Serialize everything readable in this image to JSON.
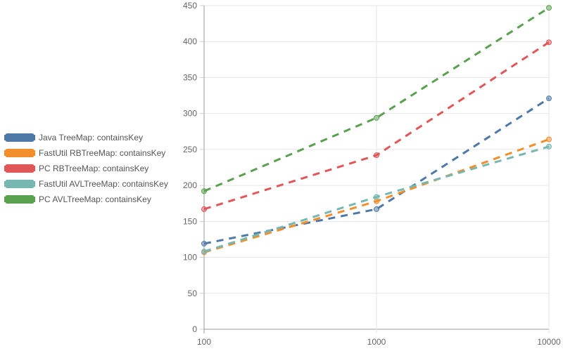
{
  "chart_data": {
    "type": "line",
    "x": [
      100,
      1000,
      10000
    ],
    "x_scale": "log",
    "xlim": [
      100,
      10000
    ],
    "ylim": [
      0,
      450
    ],
    "y_ticks": [
      0,
      50,
      100,
      150,
      200,
      250,
      300,
      350,
      400,
      450
    ],
    "x_ticks": [
      100,
      1000,
      10000
    ],
    "x_tick_labels": [
      "100",
      "1000",
      "10000"
    ],
    "y_tick_labels": [
      "0",
      "50",
      "100",
      "150",
      "200",
      "250",
      "300",
      "350",
      "400",
      "450"
    ],
    "grid": true,
    "line_style": "dashed",
    "legend_position": "left",
    "series": [
      {
        "name": "Java TreeMap: containsKey",
        "color": "#4e79a7",
        "values": [
          119,
          167,
          321
        ]
      },
      {
        "name": "FastUtil RBTreeMap: containsKey",
        "color": "#f28e2b",
        "values": [
          107,
          178,
          264
        ]
      },
      {
        "name": "PC RBTreeMap: containsKey",
        "color": "#e15759",
        "values": [
          167,
          242,
          399
        ]
      },
      {
        "name": "FastUtil AVLTreeMap: containsKey",
        "color": "#76b7b2",
        "values": [
          108,
          184,
          254
        ]
      },
      {
        "name": "PC AVLTreeMap: containsKey",
        "color": "#59a14f",
        "values": [
          192,
          294,
          447
        ]
      }
    ]
  }
}
